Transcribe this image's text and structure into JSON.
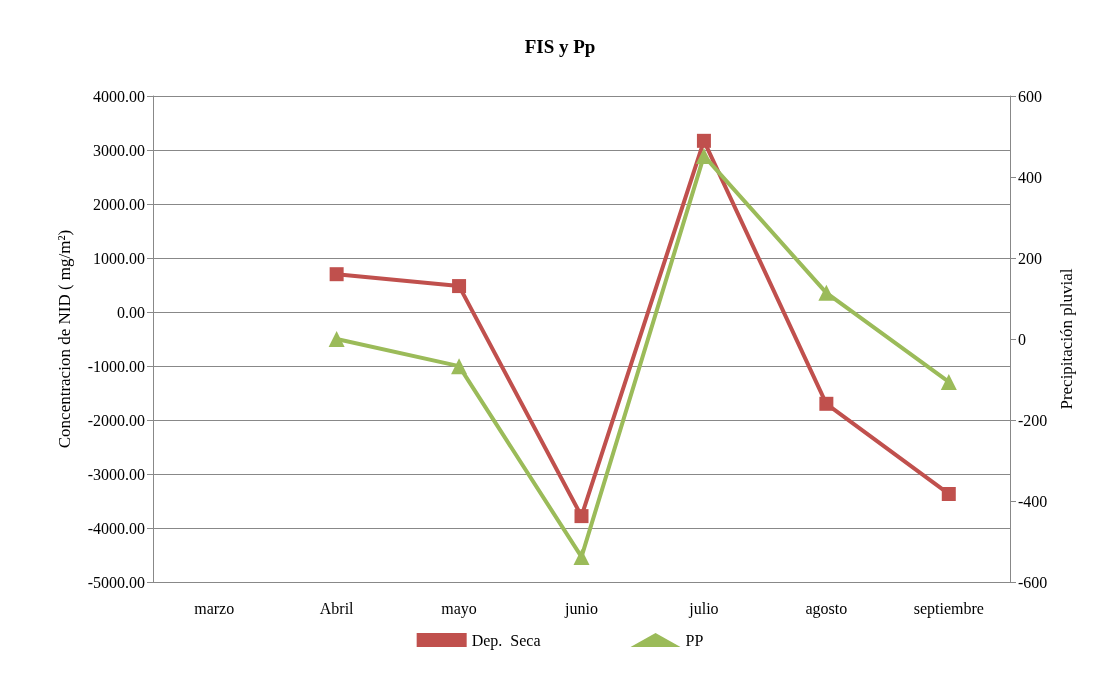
{
  "chart_data": {
    "type": "line",
    "title": "FIS y Pp",
    "ylabel": "Concentracion de NID ( mg/m²)",
    "y2label": "Precipitación pluvial",
    "categories": [
      "marzo",
      "Abril",
      "mayo",
      "junio",
      "julio",
      "agosto",
      "septiembre"
    ],
    "series": [
      {
        "name": "Dep.  Seca",
        "color": "#c0504d",
        "marker": "square",
        "values": [
          null,
          700,
          480,
          -3780,
          3170,
          -1700,
          -3370
        ]
      },
      {
        "name": "PP",
        "color": "#9bbb59",
        "marker": "triangle",
        "axis": "y2",
        "values": [
          null,
          0,
          -67,
          -538,
          452,
          114,
          -106
        ]
      }
    ],
    "ylim": [
      -5000,
      4000
    ],
    "yticks": [
      {
        "value": -5000,
        "label": "-5000.00"
      },
      {
        "value": -4000,
        "label": "-4000.00"
      },
      {
        "value": -3000,
        "label": "-3000.00"
      },
      {
        "value": -2000,
        "label": "-2000.00"
      },
      {
        "value": -1000,
        "label": "-1000.00"
      },
      {
        "value": 0,
        "label": "0.00"
      },
      {
        "value": 1000,
        "label": "1000.00"
      },
      {
        "value": 2000,
        "label": "2000.00"
      },
      {
        "value": 3000,
        "label": "3000.00"
      },
      {
        "value": 4000,
        "label": "4000.00"
      }
    ],
    "y2lim": [
      -600,
      600
    ],
    "y2ticks": [
      -600,
      -400,
      -200,
      0,
      200,
      400,
      600
    ],
    "grid": "y",
    "legend": "bottom",
    "line_style": "solid"
  }
}
